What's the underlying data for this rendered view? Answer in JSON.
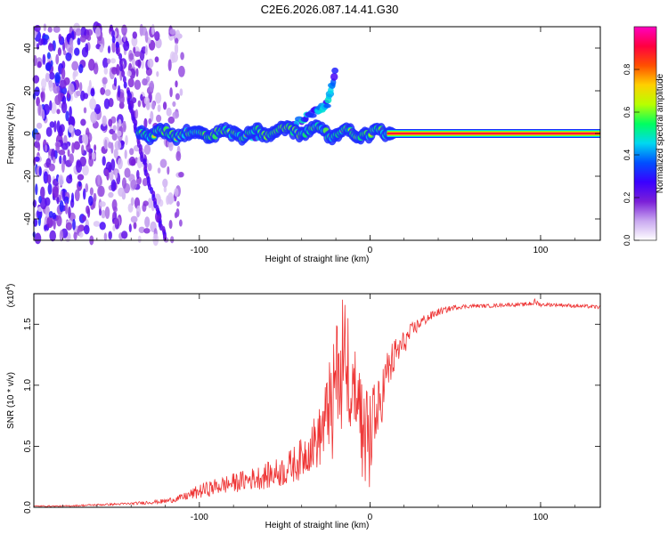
{
  "title": "C2E6.2026.087.14.41.G30",
  "chart_data": [
    {
      "type": "heatmap",
      "name": "spectrogram",
      "xlabel": "Height of straight line (km)",
      "ylabel": "Frequency (Hz)",
      "xlim": [
        -197,
        135
      ],
      "ylim": [
        -50,
        50
      ],
      "xticks": [
        -100,
        0,
        100
      ],
      "yticks": [
        -40,
        -20,
        0,
        20,
        40
      ],
      "xtick_labels": [
        "-100",
        "0",
        "100"
      ],
      "ytick_labels": [
        "-40",
        "-20",
        "0",
        "20",
        "40"
      ],
      "colorbar": {
        "label": "Normalized spectral amplitude",
        "range": [
          0.0,
          1.0
        ],
        "ticks": [
          0.0,
          0.2,
          0.4,
          0.6,
          0.8
        ],
        "tick_labels": [
          "0.0",
          "0.2",
          "0.4",
          "0.6",
          "0.8"
        ],
        "colormap": [
          "#ffffff",
          "#c9a8f0",
          "#7b1fd8",
          "#3a00ff",
          "#0050ff",
          "#00d8f0",
          "#00ff60",
          "#b8ff00",
          "#ffd000",
          "#ff5000",
          "#ff0040",
          "#ff00c0"
        ]
      },
      "features": {
        "main_trace": {
          "x_start": -135,
          "x_end": 135,
          "freq_hz": 0
        },
        "early_trace": {
          "points": [
            [
              -152,
              52
            ],
            [
              -142,
              20
            ],
            [
              -138,
              5
            ],
            [
              -132,
              -15
            ],
            [
              -125,
              -35
            ],
            [
              -120,
              -50
            ]
          ]
        },
        "branch": {
          "points": [
            [
              -70,
              -2
            ],
            [
              -55,
              2
            ],
            [
              -40,
              6
            ],
            [
              -32,
              10
            ],
            [
              -25,
              14
            ],
            [
              -20,
              30
            ]
          ]
        },
        "noise_region_x": [
          -197,
          -110
        ]
      }
    },
    {
      "type": "line",
      "name": "snr",
      "xlabel": "Height of straight line (km)",
      "ylabel": "SNR (10 * v/v)",
      "multiplier_label": "(x10",
      "multiplier_exp": "4",
      "multiplier_close": ")",
      "xlim": [
        -197,
        135
      ],
      "ylim": [
        0,
        1.75
      ],
      "xticks": [
        -100,
        0,
        100
      ],
      "yticks": [
        0.0,
        0.5,
        1.0,
        1.5
      ],
      "xtick_labels": [
        "-100",
        "0",
        "100"
      ],
      "ytick_labels": [
        "0.0",
        "0.5",
        "1.0",
        "1.5"
      ],
      "series": [
        {
          "name": "SNR",
          "color": "#ee3333",
          "x": [
            -197,
            -180,
            -160,
            -140,
            -120,
            -110,
            -100,
            -90,
            -80,
            -70,
            -60,
            -50,
            -40,
            -35,
            -30,
            -25,
            -20,
            -18,
            -15,
            -10,
            -5,
            0,
            5,
            10,
            15,
            20,
            25,
            30,
            40,
            50,
            60,
            70,
            80,
            90,
            97,
            100,
            110,
            120,
            135
          ],
          "y": [
            0.01,
            0.01,
            0.02,
            0.03,
            0.05,
            0.08,
            0.13,
            0.17,
            0.2,
            0.23,
            0.26,
            0.3,
            0.4,
            0.5,
            0.56,
            0.75,
            1.05,
            1.2,
            1.2,
            0.95,
            0.65,
            0.55,
            0.8,
            1.1,
            1.25,
            1.35,
            1.45,
            1.52,
            1.6,
            1.64,
            1.65,
            1.65,
            1.66,
            1.66,
            1.68,
            1.66,
            1.66,
            1.65,
            1.64
          ],
          "noise_amplitude": [
            0.005,
            0.005,
            0.008,
            0.01,
            0.02,
            0.03,
            0.06,
            0.07,
            0.08,
            0.09,
            0.11,
            0.13,
            0.17,
            0.2,
            0.25,
            0.35,
            0.45,
            0.45,
            0.4,
            0.35,
            0.3,
            0.3,
            0.25,
            0.2,
            0.15,
            0.1,
            0.07,
            0.05,
            0.03,
            0.02,
            0.015,
            0.015,
            0.015,
            0.015,
            0.03,
            0.015,
            0.015,
            0.015,
            0.015
          ]
        }
      ]
    }
  ]
}
